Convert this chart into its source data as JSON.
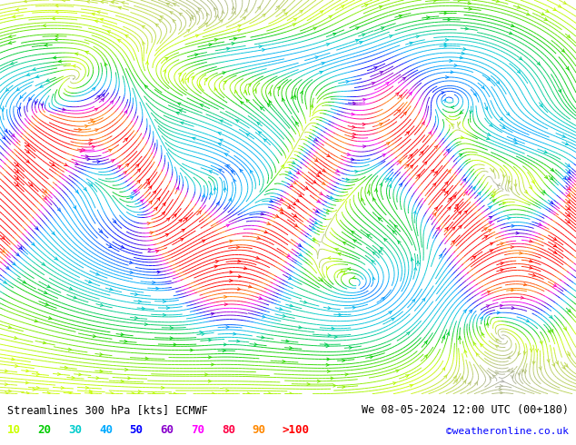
{
  "title_left": "Streamlines 300 hPa [kts] ECMWF",
  "title_right": "We 08-05-2024 12:00 UTC (00+180)",
  "watermark": "©weatheronline.co.uk",
  "legend_values": [
    "10",
    "20",
    "30",
    "40",
    "50",
    "60",
    "70",
    "80",
    "90",
    ">100"
  ],
  "leg_colors": [
    "#ccff00",
    "#00cc00",
    "#00cccc",
    "#00aaff",
    "#0000ff",
    "#8800cc",
    "#ff00ff",
    "#ff0044",
    "#ff8800",
    "#ff0000"
  ],
  "bg_color": "#ffffff",
  "map_bg": "#ccffcc",
  "title_color": "#000000",
  "watermark_color": "#0000ff",
  "figsize": [
    6.34,
    4.9
  ],
  "dpi": 100,
  "speed_levels": [
    0,
    10,
    20,
    30,
    40,
    50,
    60,
    70,
    80,
    90,
    110
  ],
  "speed_colors": [
    "#aaaaaa",
    "#ccff00",
    "#00cc00",
    "#00cccc",
    "#00aaff",
    "#0000ff",
    "#8800cc",
    "#ff00ff",
    "#ff0044",
    "#ff8800",
    "#ff0000"
  ]
}
